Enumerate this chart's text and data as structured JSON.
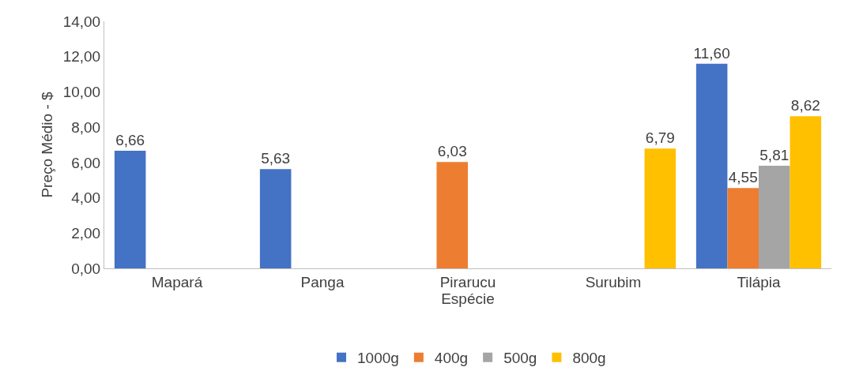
{
  "chart_data": {
    "type": "bar",
    "xlabel": "Espécie",
    "ylabel": "Preço Médio - $",
    "categories": [
      "Mapará",
      "Panga",
      "Pirarucu",
      "Surubim",
      "Tilápia"
    ],
    "series": [
      {
        "name": "1000g",
        "color": "#4472c4",
        "values": [
          6.66,
          5.63,
          null,
          null,
          11.6
        ],
        "value_labels": [
          "6,66",
          "5,63",
          null,
          null,
          "11,60"
        ]
      },
      {
        "name": "400g",
        "color": "#ed7d31",
        "values": [
          null,
          null,
          6.03,
          null,
          4.55
        ],
        "value_labels": [
          null,
          null,
          "6,03",
          null,
          "4,55"
        ]
      },
      {
        "name": "500g",
        "color": "#a5a5a5",
        "values": [
          null,
          null,
          null,
          null,
          5.81
        ],
        "value_labels": [
          null,
          null,
          null,
          null,
          "5,81"
        ]
      },
      {
        "name": "800g",
        "color": "#ffc000",
        "values": [
          null,
          null,
          null,
          6.79,
          8.62
        ],
        "value_labels": [
          null,
          null,
          null,
          "6,79",
          "8,62"
        ]
      }
    ],
    "ylim": [
      0,
      14
    ],
    "yticks": [
      {
        "value": 0,
        "label": "0,00"
      },
      {
        "value": 2,
        "label": "2,00"
      },
      {
        "value": 4,
        "label": "4,00"
      },
      {
        "value": 6,
        "label": "6,00"
      },
      {
        "value": 8,
        "label": "8,00"
      },
      {
        "value": 10,
        "label": "10,00"
      },
      {
        "value": 12,
        "label": "12,00"
      },
      {
        "value": 14,
        "label": "14,00"
      }
    ],
    "grid": false,
    "legend": "bottom"
  }
}
